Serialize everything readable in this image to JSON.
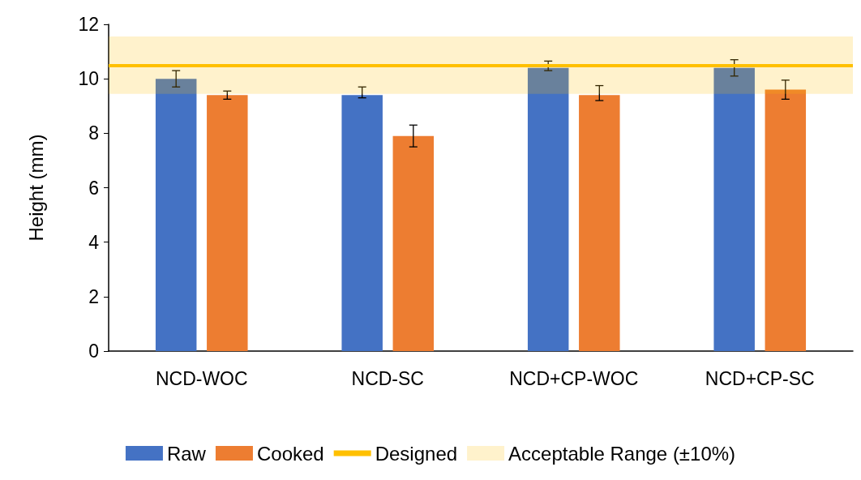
{
  "chart_data": {
    "type": "bar",
    "ylabel": "Height (mm)",
    "categories": [
      "NCD-WOC",
      "NCD-SC",
      "NCD+CP-WOC",
      "NCD+CP-SC"
    ],
    "series": [
      {
        "name": "Raw",
        "color": "#4472c4",
        "values": [
          10.0,
          9.4,
          10.4,
          10.4
        ],
        "errors": [
          0.3,
          [
            9.3,
            9.7
          ],
          [
            10.3,
            10.65
          ],
          0.3
        ]
      },
      {
        "name": "Cooked",
        "color": "#ed7d31",
        "values": [
          9.4,
          7.9,
          9.4,
          9.6
        ],
        "errors": [
          0.15,
          0.4,
          [
            9.2,
            9.75
          ],
          0.35
        ]
      }
    ],
    "ylim": [
      0,
      12
    ],
    "yticks": [
      0,
      2,
      4,
      6,
      8,
      10,
      12
    ],
    "grid": false,
    "legend": "bottom",
    "ref_lines": [
      {
        "axis": "y",
        "value": 10.5,
        "label": "Designed",
        "color": "#ffc000",
        "line_style": "solid"
      }
    ],
    "bands": [
      {
        "axis": "y",
        "from": 9.45,
        "to": 11.55,
        "label": "Acceptable Range (±10%)",
        "color": "#ffc000"
      }
    ]
  }
}
